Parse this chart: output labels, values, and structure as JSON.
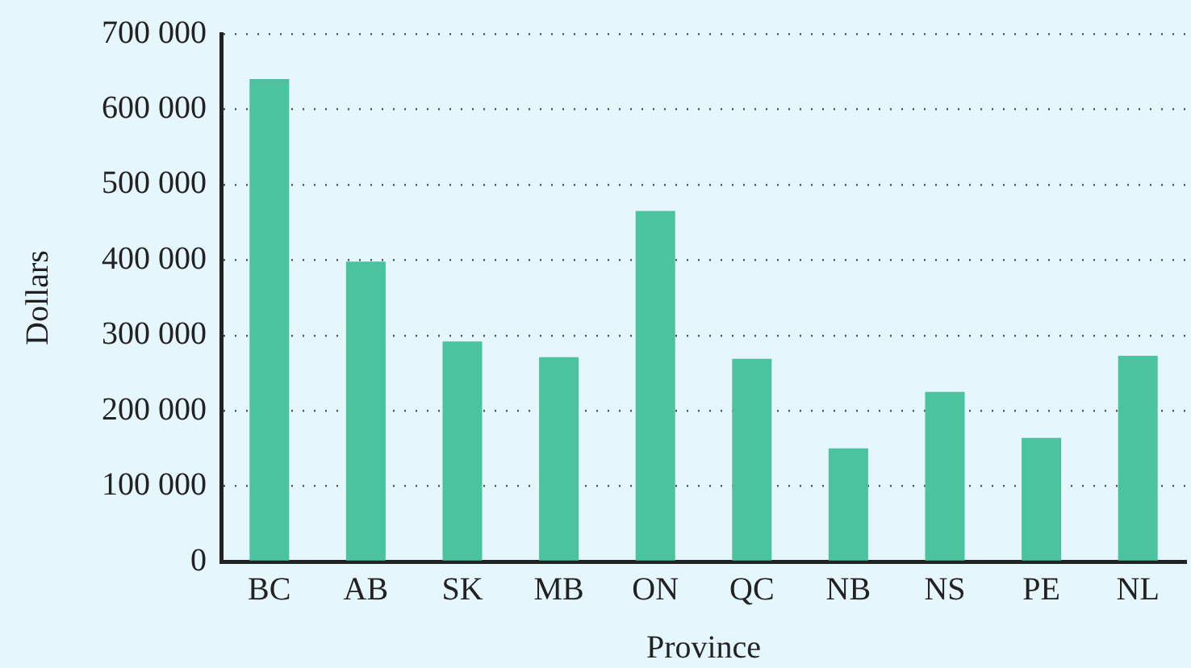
{
  "chart_data": {
    "type": "bar",
    "xlabel": "Province",
    "ylabel": "Dollars",
    "categories": [
      "BC",
      "AB",
      "SK",
      "MB",
      "ON",
      "QC",
      "NB",
      "NS",
      "PE",
      "NL"
    ],
    "values": [
      640000,
      398000,
      292000,
      271000,
      465000,
      269000,
      150000,
      225000,
      164000,
      273000
    ],
    "color": "#4cc39f",
    "ylim": [
      0,
      700000
    ],
    "yticks": [
      0,
      {
        "value": 100000,
        "label": "100 000"
      },
      {
        "value": 200000,
        "label": "200 000"
      },
      {
        "value": 300000,
        "label": "300 000"
      },
      {
        "value": 400000,
        "label": "400 000"
      },
      {
        "value": 500000,
        "label": "500 000"
      },
      {
        "value": 600000,
        "label": "600 000"
      },
      {
        "value": 700000,
        "label": "700 000"
      }
    ],
    "grid": "y"
  }
}
